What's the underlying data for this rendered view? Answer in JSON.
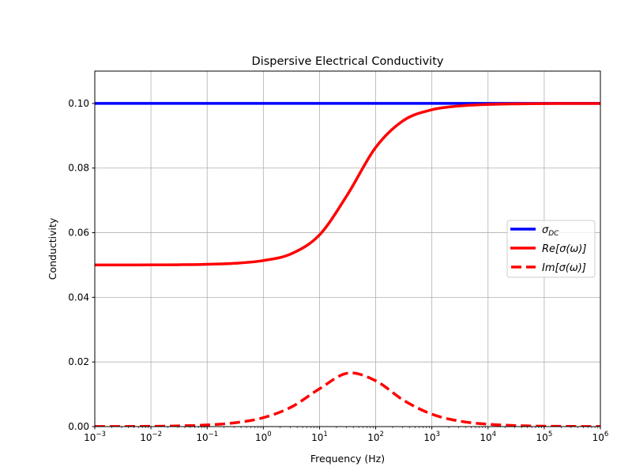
{
  "chart_data": {
    "type": "line",
    "title": "Dispersive Electrical Conductivity",
    "xlabel": "Frequency (Hz)",
    "ylabel": "Conductivity",
    "xscale": "log",
    "xlim": [
      0.001,
      1000000
    ],
    "ylim": [
      0,
      0.11
    ],
    "grid": true,
    "legend_position": "right",
    "x_ticks": [
      {
        "base": "10",
        "exp": "−3"
      },
      {
        "base": "10",
        "exp": "−2"
      },
      {
        "base": "10",
        "exp": "−1"
      },
      {
        "base": "10",
        "exp": "0"
      },
      {
        "base": "10",
        "exp": "1"
      },
      {
        "base": "10",
        "exp": "2"
      },
      {
        "base": "10",
        "exp": "3"
      },
      {
        "base": "10",
        "exp": "4"
      },
      {
        "base": "10",
        "exp": "5"
      },
      {
        "base": "10",
        "exp": "6"
      }
    ],
    "y_ticks": [
      "0.00",
      "0.02",
      "0.04",
      "0.06",
      "0.08",
      "0.10"
    ],
    "x": [
      0.001,
      0.00316,
      0.01,
      0.0316,
      0.1,
      0.316,
      1,
      3.16,
      10,
      31.6,
      100,
      316,
      1000,
      3160,
      10000,
      31600,
      100000,
      316000,
      1000000
    ],
    "series": [
      {
        "name": "σ",
        "name_sub": "DC",
        "color": "#0000ff",
        "style": "solid",
        "values": [
          0.1,
          0.1,
          0.1,
          0.1,
          0.1,
          0.1,
          0.1,
          0.1,
          0.1,
          0.1,
          0.1,
          0.1,
          0.1,
          0.1,
          0.1,
          0.1,
          0.1,
          0.1,
          0.1
        ]
      },
      {
        "name": "Re[σ(ω)]",
        "color": "#ff0000",
        "style": "solid",
        "values": [
          0.05001,
          0.05003,
          0.05004,
          0.05009,
          0.05022,
          0.05053,
          0.05138,
          0.05349,
          0.05933,
          0.07183,
          0.0864,
          0.09478,
          0.09804,
          0.09923,
          0.09969,
          0.09987,
          0.09995,
          0.09998,
          0.09999
        ]
      },
      {
        "name": "Im[σ(ω)]",
        "color": "#ff0000",
        "style": "dashed",
        "values": [
          1.64e-05,
          3.9e-05,
          9.18e-05,
          0.000217,
          0.000512,
          0.0012,
          0.00276,
          0.00606,
          0.0117,
          0.01652,
          0.01418,
          0.00811,
          0.00384,
          0.00169,
          0.000726,
          0.000308,
          0.00013,
          5.5e-05,
          2.32e-05
        ]
      }
    ]
  }
}
